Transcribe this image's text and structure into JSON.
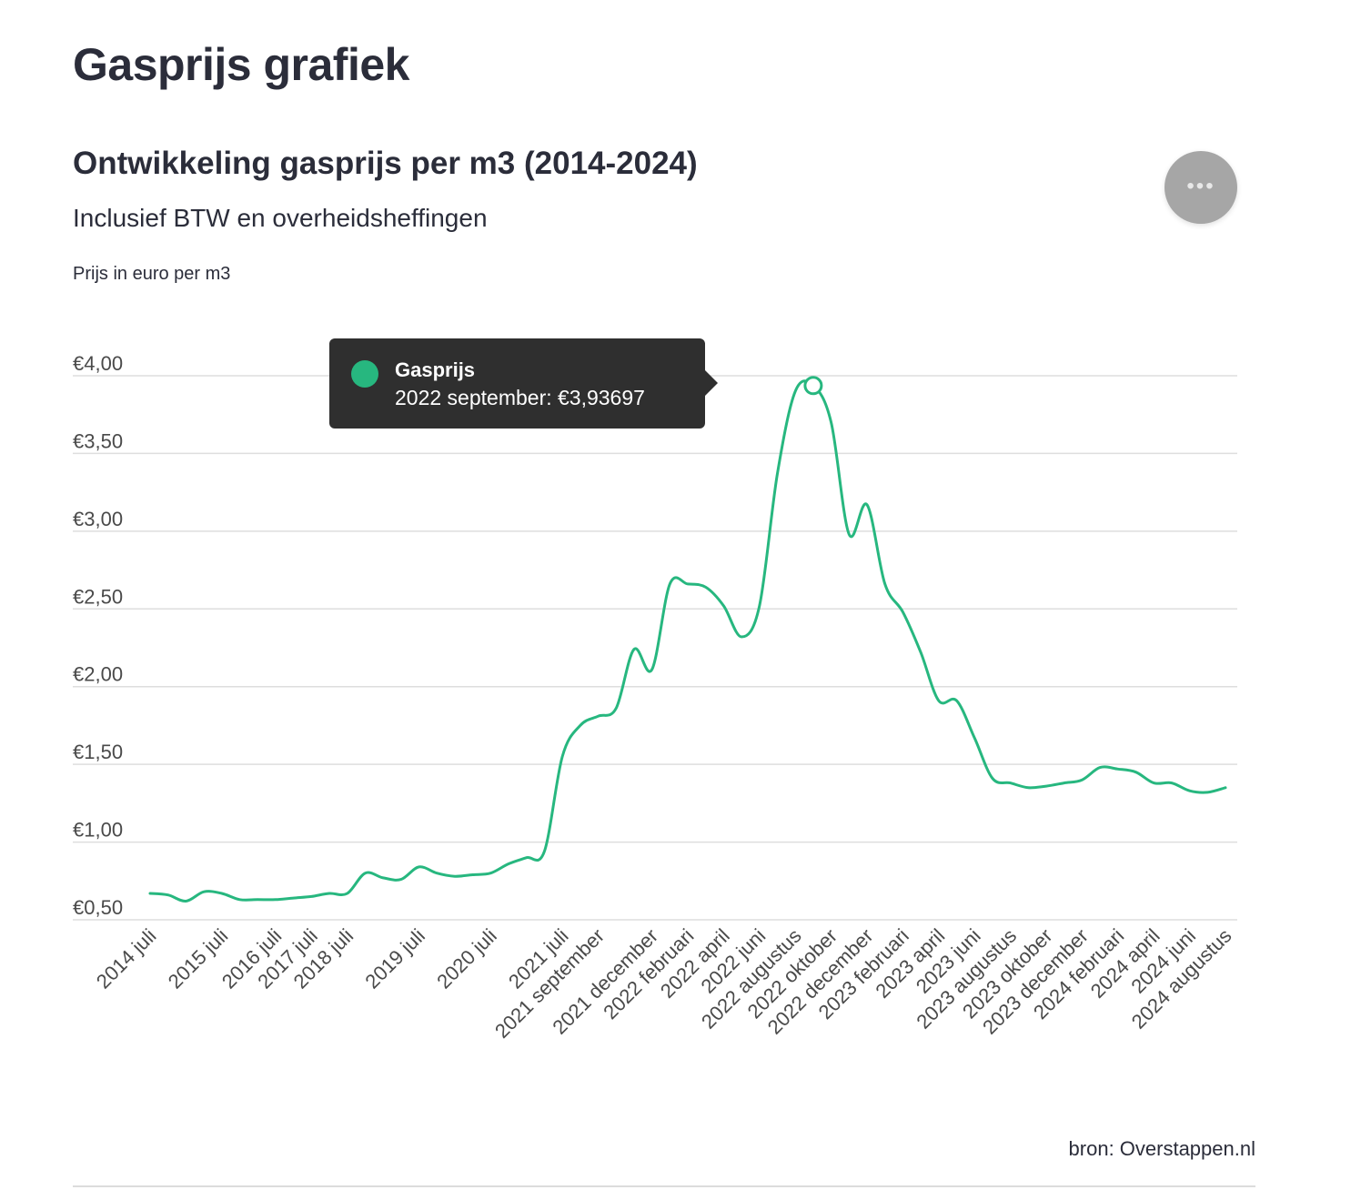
{
  "page": {
    "title": "Gasprijs grafiek",
    "menu_icon": "more-horizontal-icon",
    "menu_glyph": "•••",
    "source": "bron: Overstappen.nl"
  },
  "tooltip": {
    "series": "Gasprijs",
    "value_text": "2022 september: €3,93697",
    "color": "#27b77f"
  },
  "chart_data": {
    "type": "line",
    "title": "Ontwikkeling gasprijs per m3 (2014-2024)",
    "subtitle": "Inclusief BTW en overheidsheffingen",
    "ylabel": "Prijs in euro per m3",
    "xlabel": "",
    "ylim": [
      0.5,
      4.0
    ],
    "y_ticks": [
      {
        "value": 4.0,
        "label": "€4,00"
      },
      {
        "value": 3.5,
        "label": "€3,50"
      },
      {
        "value": 3.0,
        "label": "€3,00"
      },
      {
        "value": 2.5,
        "label": "€2,50"
      },
      {
        "value": 2.0,
        "label": "€2,00"
      },
      {
        "value": 1.5,
        "label": "€1,50"
      },
      {
        "value": 1.0,
        "label": "€1,00"
      },
      {
        "value": 0.5,
        "label": "€0,50"
      }
    ],
    "grid": true,
    "legend": "none",
    "color": "#27b77f",
    "x_tick_labels": [
      "2014 juli",
      "2015 juli",
      "2016 juli",
      "2017 juli",
      "2018 juli",
      "2019 juli",
      "2020 juli",
      "2021 juli",
      "2021 september",
      "2021 december",
      "2022 februari",
      "2022 april",
      "2022 juni",
      "2022 augustus",
      "2022 oktober",
      "2022 december",
      "2023 februari",
      "2023 april",
      "2023 juni",
      "2023 augustus",
      "2023 oktober",
      "2023 december",
      "2024 februari",
      "2024 april",
      "2024 juni",
      "2024 augustus"
    ],
    "highlight": {
      "x": "2022 september",
      "y": 3.93697
    },
    "series": [
      {
        "name": "Gasprijs",
        "points": [
          {
            "x": "2014 juli",
            "y": 0.67
          },
          {
            "x": "2014 oktober",
            "y": 0.66
          },
          {
            "x": "2015 januari",
            "y": 0.62
          },
          {
            "x": "2015 april",
            "y": 0.68
          },
          {
            "x": "2015 juli",
            "y": 0.67
          },
          {
            "x": "2015 oktober",
            "y": 0.63
          },
          {
            "x": "2016 januari",
            "y": 0.63
          },
          {
            "x": "2016 juli",
            "y": 0.63
          },
          {
            "x": "2017 januari",
            "y": 0.64
          },
          {
            "x": "2017 juli",
            "y": 0.65
          },
          {
            "x": "2018 januari",
            "y": 0.67
          },
          {
            "x": "2018 juli",
            "y": 0.67
          },
          {
            "x": "2018 oktober",
            "y": 0.8
          },
          {
            "x": "2019 januari",
            "y": 0.77
          },
          {
            "x": "2019 april",
            "y": 0.76
          },
          {
            "x": "2019 juli",
            "y": 0.84
          },
          {
            "x": "2019 oktober",
            "y": 0.8
          },
          {
            "x": "2020 januari",
            "y": 0.78
          },
          {
            "x": "2020 april",
            "y": 0.79
          },
          {
            "x": "2020 juli",
            "y": 0.8
          },
          {
            "x": "2020 oktober",
            "y": 0.86
          },
          {
            "x": "2021 januari",
            "y": 0.9
          },
          {
            "x": "2021 april",
            "y": 0.94
          },
          {
            "x": "2021 juli",
            "y": 1.55
          },
          {
            "x": "2021 augustus",
            "y": 1.75
          },
          {
            "x": "2021 september",
            "y": 1.81
          },
          {
            "x": "2021 oktober",
            "y": 1.86
          },
          {
            "x": "2021 november",
            "y": 2.24
          },
          {
            "x": "2021 december",
            "y": 2.11
          },
          {
            "x": "2022 januari",
            "y": 2.66
          },
          {
            "x": "2022 februari",
            "y": 2.66
          },
          {
            "x": "2022 maart",
            "y": 2.64
          },
          {
            "x": "2022 april",
            "y": 2.52
          },
          {
            "x": "2022 mei",
            "y": 2.32
          },
          {
            "x": "2022 juni",
            "y": 2.52
          },
          {
            "x": "2022 juli",
            "y": 3.37
          },
          {
            "x": "2022 augustus",
            "y": 3.9
          },
          {
            "x": "2022 september",
            "y": 3.93697
          },
          {
            "x": "2022 oktober",
            "y": 3.7
          },
          {
            "x": "2022 november",
            "y": 2.98
          },
          {
            "x": "2022 december",
            "y": 3.17
          },
          {
            "x": "2023 januari",
            "y": 2.66
          },
          {
            "x": "2023 februari",
            "y": 2.48
          },
          {
            "x": "2023 maart",
            "y": 2.22
          },
          {
            "x": "2023 april",
            "y": 1.91
          },
          {
            "x": "2023 mei",
            "y": 1.91
          },
          {
            "x": "2023 juni",
            "y": 1.67
          },
          {
            "x": "2023 juli",
            "y": 1.41
          },
          {
            "x": "2023 augustus",
            "y": 1.38
          },
          {
            "x": "2023 september",
            "y": 1.35
          },
          {
            "x": "2023 oktober",
            "y": 1.36
          },
          {
            "x": "2023 november",
            "y": 1.38
          },
          {
            "x": "2023 december",
            "y": 1.4
          },
          {
            "x": "2024 januari",
            "y": 1.48
          },
          {
            "x": "2024 februari",
            "y": 1.47
          },
          {
            "x": "2024 maart",
            "y": 1.45
          },
          {
            "x": "2024 april",
            "y": 1.38
          },
          {
            "x": "2024 mei",
            "y": 1.38
          },
          {
            "x": "2024 juni",
            "y": 1.33
          },
          {
            "x": "2024 juli",
            "y": 1.32
          },
          {
            "x": "2024 augustus",
            "y": 1.35
          }
        ]
      }
    ]
  }
}
